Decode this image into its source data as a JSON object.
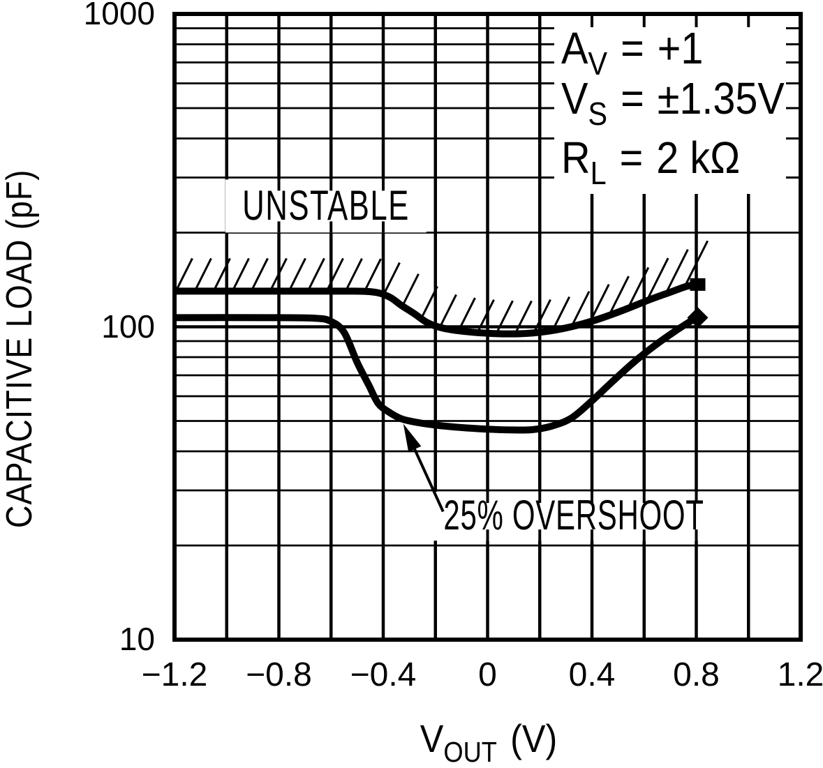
{
  "chart_data": {
    "type": "line",
    "title": "",
    "description": "Capacitive load stability boundaries vs output voltage; region above upper (hatched) curve is unstable",
    "xlabel": {
      "sym": "V",
      "sub": "OUT",
      "unit": "(V)"
    },
    "ylabel": "CAPACITIVE LOAD (pF)",
    "x_scale": "linear",
    "y_scale": "log",
    "xlim": [
      -1.2,
      1.2
    ],
    "ylim": [
      10,
      1000
    ],
    "x_ticks": [
      -1.2,
      -0.8,
      -0.4,
      0,
      0.4,
      0.8,
      1.2
    ],
    "x_tick_labels": [
      "−1.2",
      "−0.8",
      "−0.4",
      "0",
      "0.4",
      "0.8",
      "1.2"
    ],
    "x_minor_grid_step": 0.2,
    "y_ticks": [
      10,
      100,
      1000
    ],
    "y_tick_labels": [
      "10",
      "100",
      "1000"
    ],
    "grid": "full grid: vertical every 0.2 V, horizontal at every log minor (2-9 per decade)",
    "legend_position": "top-right box",
    "conditions": [
      {
        "sym": "A",
        "sub": "V",
        "eq": "=",
        "val": "+1"
      },
      {
        "sym": "V",
        "sub": "S",
        "eq": "=",
        "val": "±1.35V"
      },
      {
        "sym": "R",
        "sub": "L",
        "eq": "=",
        "val": "2 kΩ"
      }
    ],
    "annotations": {
      "unstable": {
        "text": "UNSTABLE",
        "x": -0.62,
        "y": 242
      },
      "overshoot": {
        "text": "25% OVERSHOOT",
        "x": 0.33,
        "y": 24.8,
        "arrow_tip": {
          "x": -0.323,
          "y": 49
        }
      }
    },
    "series": [
      {
        "name": "unstable boundary (hatched above curve)",
        "points": [
          [
            -1.2,
            130
          ],
          [
            -0.9,
            130
          ],
          [
            -0.6,
            130
          ],
          [
            -0.45,
            129.5
          ],
          [
            -0.38,
            125
          ],
          [
            -0.33,
            117
          ],
          [
            -0.28,
            110
          ],
          [
            -0.23,
            103
          ],
          [
            -0.17,
            99
          ],
          [
            -0.08,
            96.5
          ],
          [
            0.02,
            95.2
          ],
          [
            0.12,
            95
          ],
          [
            0.22,
            96.5
          ],
          [
            0.32,
            100
          ],
          [
            0.42,
            105.5
          ],
          [
            0.52,
            113
          ],
          [
            0.62,
            122
          ],
          [
            0.7,
            129
          ],
          [
            0.76,
            134.5
          ],
          [
            0.8,
            136.5
          ]
        ]
      },
      {
        "name": "25% overshoot",
        "points": [
          [
            -1.2,
            107
          ],
          [
            -0.85,
            107
          ],
          [
            -0.66,
            106.5
          ],
          [
            -0.6,
            104
          ],
          [
            -0.55,
            96
          ],
          [
            -0.5,
            77
          ],
          [
            -0.455,
            65
          ],
          [
            -0.42,
            57
          ],
          [
            -0.38,
            53.5
          ],
          [
            -0.33,
            50.8
          ],
          [
            -0.26,
            49.3
          ],
          [
            -0.18,
            48.3
          ],
          [
            -0.08,
            47.5
          ],
          [
            0.02,
            47
          ],
          [
            0.1,
            46.8
          ],
          [
            0.17,
            46.9
          ],
          [
            0.24,
            48
          ],
          [
            0.32,
            51
          ],
          [
            0.4,
            58
          ],
          [
            0.48,
            67
          ],
          [
            0.56,
            77
          ],
          [
            0.64,
            87
          ],
          [
            0.72,
            97
          ],
          [
            0.8,
            107
          ]
        ]
      }
    ],
    "colors": {
      "ink": "#000000",
      "background": "#ffffff"
    }
  }
}
